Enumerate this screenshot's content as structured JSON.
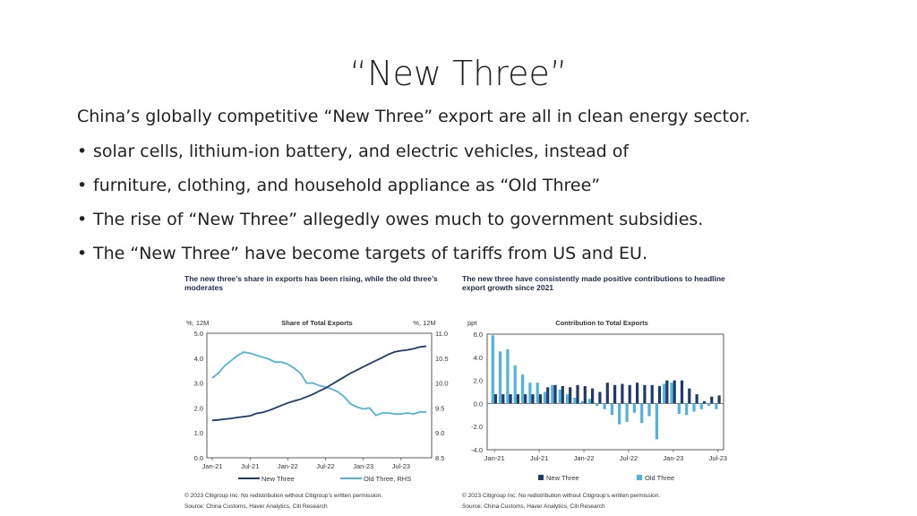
{
  "slide": {
    "title": "“New Three”",
    "lead": "China’s globally competitive “New Three” export are all in clean energy sector.",
    "bullets": [
      "solar cells, lithium-ion battery, and electric vehicles, instead of",
      "furniture, clothing, and household appliance as “Old Three”",
      "The rise of “New Three” allegedly owes much to government subsidies.",
      "The “New Three” have become targets of tariffs from US and EU."
    ]
  },
  "left_panel": {
    "heading": "The new three’s share in exports has been rising, while the old three’s moderates",
    "left_unit": "%, 12M",
    "chart_title": "Share of Total Exports",
    "right_unit": "%, 12M",
    "copyright": "© 2023 Citigroup Inc. No redistribution without Citigroup’s written permission.",
    "source": "Source: China Customs, Haver Analytics, Citi Research",
    "colors": {
      "new": "#1f3a6b",
      "old": "#4fb3dc"
    }
  },
  "right_panel": {
    "heading": "The new three have consistently made positive contributions to headline export growth since 2021",
    "unit": "ppt",
    "chart_title": "Contribution to Total Exports",
    "copyright": "© 2023 Citigroup Inc. No redistribution without Citigroup’s written permission.",
    "source": "Source: China Customs, Haver Analytics, Citi Research",
    "colors": {
      "new": "#1f3a6b",
      "old": "#4fb3dc"
    }
  },
  "chart_data": [
    {
      "type": "line",
      "title": "Share of Total Exports",
      "x_ticks": [
        "Jan-21",
        "Jul-21",
        "Jan-22",
        "Jul-22",
        "Jan-23",
        "Jul-23"
      ],
      "x_months": 35,
      "y_left_ticks": [
        "5.0",
        "4.0",
        "3.0",
        "2.0",
        "1.0",
        "0.0"
      ],
      "y_right_ticks": [
        "11.0",
        "10.5",
        "10.0",
        "9.5",
        "9.0",
        "8.5"
      ],
      "ylim_left": [
        0,
        5
      ],
      "ylim_right": [
        8.5,
        11
      ],
      "legend": "bottom",
      "series": [
        {
          "name": "New Three",
          "axis": "left",
          "values": [
            1.5,
            1.52,
            1.55,
            1.58,
            1.62,
            1.65,
            1.68,
            1.78,
            1.82,
            1.9,
            2.0,
            2.1,
            2.2,
            2.28,
            2.35,
            2.45,
            2.55,
            2.68,
            2.8,
            2.95,
            3.1,
            3.25,
            3.4,
            3.52,
            3.65,
            3.78,
            3.9,
            4.02,
            4.15,
            4.25,
            4.3,
            4.33,
            4.38,
            4.45,
            4.48
          ]
        },
        {
          "name": "Old Three, RHS",
          "axis": "right",
          "values": [
            10.1,
            10.2,
            10.35,
            10.45,
            10.55,
            10.62,
            10.6,
            10.56,
            10.52,
            10.48,
            10.42,
            10.42,
            10.38,
            10.3,
            10.2,
            10.0,
            10.0,
            9.95,
            9.92,
            9.88,
            9.82,
            9.72,
            9.58,
            9.52,
            9.48,
            9.5,
            9.35,
            9.4,
            9.4,
            9.38,
            9.38,
            9.4,
            9.38,
            9.42,
            9.42
          ]
        }
      ]
    },
    {
      "type": "bar",
      "title": "Contribution to Total Exports",
      "x_ticks": [
        "Jan-21",
        "Jul-21",
        "Jan-22",
        "Jul-22",
        "Jan-23",
        "Jul-23"
      ],
      "y_ticks": [
        "6.0",
        "4.0",
        "2.0",
        "0.0",
        "-2.0",
        "-4.0"
      ],
      "ylim": [
        -4,
        6
      ],
      "legend": "bottom",
      "series": [
        {
          "name": "New Three",
          "values": [
            0.8,
            0.8,
            0.8,
            0.8,
            0.8,
            0.8,
            0.8,
            1.4,
            1.6,
            1.5,
            1.4,
            1.6,
            1.5,
            1.3,
            1.0,
            1.8,
            1.6,
            1.7,
            1.6,
            1.8,
            1.6,
            1.6,
            1.5,
            2.0,
            2.0,
            2.0,
            1.3,
            0.8,
            0.2,
            0.6,
            0.7
          ]
        },
        {
          "name": "Old Three",
          "values": [
            5.9,
            4.5,
            4.7,
            3.3,
            2.5,
            1.8,
            1.8,
            1.0,
            1.6,
            1.2,
            0.8,
            0.5,
            0.2,
            0.4,
            -0.2,
            -0.5,
            -1.0,
            -1.8,
            -1.6,
            -0.8,
            -1.7,
            -1.1,
            -3.1,
            1.7,
            1.8,
            -0.9,
            -1.0,
            -0.7,
            -0.5,
            -0.2,
            -0.5
          ]
        }
      ]
    }
  ]
}
